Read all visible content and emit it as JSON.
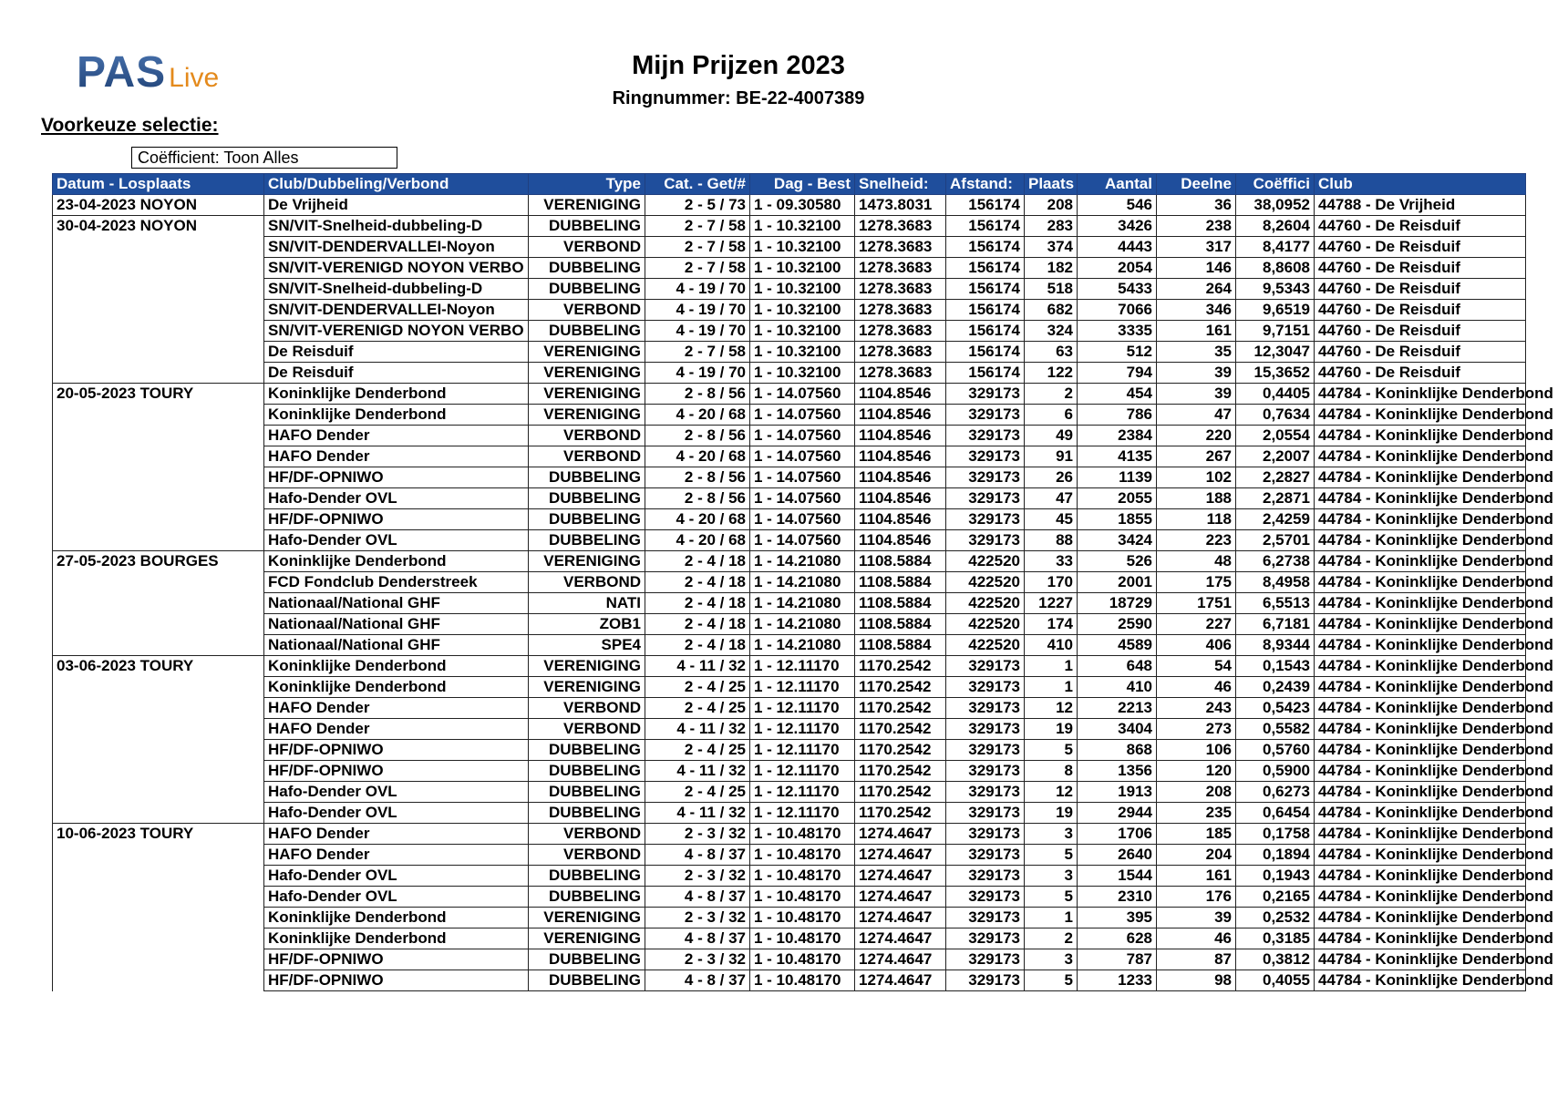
{
  "logo": {
    "text_main": "PAS",
    "text_sub": "Live",
    "colors": {
      "main": "#2a4f86",
      "sub": "#e48a1c"
    }
  },
  "header": {
    "title": "Mijn Prijzen 2023",
    "ringnummer": "Ringnummer: BE-22-4007389"
  },
  "selection": {
    "label": "Voorkeuze selectie:",
    "coefficient": "Coëfficient: Toon Alles"
  },
  "table": {
    "header_color": "#1f4e9c",
    "columns": [
      "Datum - Losplaats",
      "Club/Dubbeling/Verbond",
      "Type",
      "Cat. - Get/#",
      "Dag - Best",
      "Snelheid:",
      "Afstand:",
      "Plaats",
      "Aantal",
      "Deelne",
      "Coëffici",
      "Club"
    ],
    "rows": [
      [
        "23-04-2023 NOYON",
        "De Vrijheid",
        "VERENIGING",
        "2 - 5 / 73",
        "1 - 09.30580",
        "1473.8031",
        "156174",
        "208",
        "546",
        "36",
        "38,0952",
        "44788 - De Vrijheid"
      ],
      [
        "30-04-2023 NOYON",
        "SN/VIT-Snelheid-dubbeling-D",
        "DUBBELING",
        "2 - 7 / 58",
        "1 - 10.32100",
        "1278.3683",
        "156174",
        "283",
        "3426",
        "238",
        "8,2604",
        "44760 - De Reisduif"
      ],
      [
        "",
        "SN/VIT-DENDERVALLEI-Noyon",
        "VERBOND",
        "2 - 7 / 58",
        "1 - 10.32100",
        "1278.3683",
        "156174",
        "374",
        "4443",
        "317",
        "8,4177",
        "44760 - De Reisduif"
      ],
      [
        "",
        "SN/VIT-VERENIGD NOYON VERBO",
        "DUBBELING",
        "2 - 7 / 58",
        "1 - 10.32100",
        "1278.3683",
        "156174",
        "182",
        "2054",
        "146",
        "8,8608",
        "44760 - De Reisduif"
      ],
      [
        "",
        "SN/VIT-Snelheid-dubbeling-D",
        "DUBBELING",
        "4 - 19 / 70",
        "1 - 10.32100",
        "1278.3683",
        "156174",
        "518",
        "5433",
        "264",
        "9,5343",
        "44760 - De Reisduif"
      ],
      [
        "",
        "SN/VIT-DENDERVALLEI-Noyon",
        "VERBOND",
        "4 - 19 / 70",
        "1 - 10.32100",
        "1278.3683",
        "156174",
        "682",
        "7066",
        "346",
        "9,6519",
        "44760 - De Reisduif"
      ],
      [
        "",
        "SN/VIT-VERENIGD NOYON VERBO",
        "DUBBELING",
        "4 - 19 / 70",
        "1 - 10.32100",
        "1278.3683",
        "156174",
        "324",
        "3335",
        "161",
        "9,7151",
        "44760 - De Reisduif"
      ],
      [
        "",
        "De Reisduif",
        "VERENIGING",
        "2 - 7 / 58",
        "1 - 10.32100",
        "1278.3683",
        "156174",
        "63",
        "512",
        "35",
        "12,3047",
        "44760 - De Reisduif"
      ],
      [
        "",
        "De Reisduif",
        "VERENIGING",
        "4 - 19 / 70",
        "1 - 10.32100",
        "1278.3683",
        "156174",
        "122",
        "794",
        "39",
        "15,3652",
        "44760 - De Reisduif"
      ],
      [
        "20-05-2023 TOURY",
        "Koninklijke Denderbond",
        "VERENIGING",
        "2 - 8 / 56",
        "1 - 14.07560",
        "1104.8546",
        "329173",
        "2",
        "454",
        "39",
        "0,4405",
        "44784 - Koninklijke Denderbond"
      ],
      [
        "",
        "Koninklijke Denderbond",
        "VERENIGING",
        "4 - 20 / 68",
        "1 - 14.07560",
        "1104.8546",
        "329173",
        "6",
        "786",
        "47",
        "0,7634",
        "44784 - Koninklijke Denderbond"
      ],
      [
        "",
        "HAFO Dender",
        "VERBOND",
        "2 - 8 / 56",
        "1 - 14.07560",
        "1104.8546",
        "329173",
        "49",
        "2384",
        "220",
        "2,0554",
        "44784 - Koninklijke Denderbond"
      ],
      [
        "",
        "HAFO Dender",
        "VERBOND",
        "4 - 20 / 68",
        "1 - 14.07560",
        "1104.8546",
        "329173",
        "91",
        "4135",
        "267",
        "2,2007",
        "44784 - Koninklijke Denderbond"
      ],
      [
        "",
        "HF/DF-OPNIWO",
        "DUBBELING",
        "2 - 8 / 56",
        "1 - 14.07560",
        "1104.8546",
        "329173",
        "26",
        "1139",
        "102",
        "2,2827",
        "44784 - Koninklijke Denderbond"
      ],
      [
        "",
        "Hafo-Dender OVL",
        "DUBBELING",
        "2 - 8 / 56",
        "1 - 14.07560",
        "1104.8546",
        "329173",
        "47",
        "2055",
        "188",
        "2,2871",
        "44784 - Koninklijke Denderbond"
      ],
      [
        "",
        "HF/DF-OPNIWO",
        "DUBBELING",
        "4 - 20 / 68",
        "1 - 14.07560",
        "1104.8546",
        "329173",
        "45",
        "1855",
        "118",
        "2,4259",
        "44784 - Koninklijke Denderbond"
      ],
      [
        "",
        "Hafo-Dender OVL",
        "DUBBELING",
        "4 - 20 / 68",
        "1 - 14.07560",
        "1104.8546",
        "329173",
        "88",
        "3424",
        "223",
        "2,5701",
        "44784 - Koninklijke Denderbond"
      ],
      [
        "27-05-2023 BOURGES",
        "Koninklijke Denderbond",
        "VERENIGING",
        "2 - 4 / 18",
        "1 - 14.21080",
        "1108.5884",
        "422520",
        "33",
        "526",
        "48",
        "6,2738",
        "44784 - Koninklijke Denderbond"
      ],
      [
        "",
        "FCD Fondclub Denderstreek",
        "VERBOND",
        "2 - 4 / 18",
        "1 - 14.21080",
        "1108.5884",
        "422520",
        "170",
        "2001",
        "175",
        "8,4958",
        "44784 - Koninklijke Denderbond"
      ],
      [
        "",
        "Nationaal/National GHF",
        "NATI",
        "2 - 4 / 18",
        "1 - 14.21080",
        "1108.5884",
        "422520",
        "1227",
        "18729",
        "1751",
        "6,5513",
        "44784 - Koninklijke Denderbond"
      ],
      [
        "",
        "Nationaal/National GHF",
        "ZOB1",
        "2 - 4 / 18",
        "1 - 14.21080",
        "1108.5884",
        "422520",
        "174",
        "2590",
        "227",
        "6,7181",
        "44784 - Koninklijke Denderbond"
      ],
      [
        "",
        "Nationaal/National GHF",
        "SPE4",
        "2 - 4 / 18",
        "1 - 14.21080",
        "1108.5884",
        "422520",
        "410",
        "4589",
        "406",
        "8,9344",
        "44784 - Koninklijke Denderbond"
      ],
      [
        "03-06-2023 TOURY",
        "Koninklijke Denderbond",
        "VERENIGING",
        "4 - 11 / 32",
        "1 - 12.11170",
        "1170.2542",
        "329173",
        "1",
        "648",
        "54",
        "0,1543",
        "44784 - Koninklijke Denderbond"
      ],
      [
        "",
        "Koninklijke Denderbond",
        "VERENIGING",
        "2 - 4 / 25",
        "1 - 12.11170",
        "1170.2542",
        "329173",
        "1",
        "410",
        "46",
        "0,2439",
        "44784 - Koninklijke Denderbond"
      ],
      [
        "",
        "HAFO Dender",
        "VERBOND",
        "2 - 4 / 25",
        "1 - 12.11170",
        "1170.2542",
        "329173",
        "12",
        "2213",
        "243",
        "0,5423",
        "44784 - Koninklijke Denderbond"
      ],
      [
        "",
        "HAFO Dender",
        "VERBOND",
        "4 - 11 / 32",
        "1 - 12.11170",
        "1170.2542",
        "329173",
        "19",
        "3404",
        "273",
        "0,5582",
        "44784 - Koninklijke Denderbond"
      ],
      [
        "",
        "HF/DF-OPNIWO",
        "DUBBELING",
        "2 - 4 / 25",
        "1 - 12.11170",
        "1170.2542",
        "329173",
        "5",
        "868",
        "106",
        "0,5760",
        "44784 - Koninklijke Denderbond"
      ],
      [
        "",
        "HF/DF-OPNIWO",
        "DUBBELING",
        "4 - 11 / 32",
        "1 - 12.11170",
        "1170.2542",
        "329173",
        "8",
        "1356",
        "120",
        "0,5900",
        "44784 - Koninklijke Denderbond"
      ],
      [
        "",
        "Hafo-Dender OVL",
        "DUBBELING",
        "2 - 4 / 25",
        "1 - 12.11170",
        "1170.2542",
        "329173",
        "12",
        "1913",
        "208",
        "0,6273",
        "44784 - Koninklijke Denderbond"
      ],
      [
        "",
        "Hafo-Dender OVL",
        "DUBBELING",
        "4 - 11 / 32",
        "1 - 12.11170",
        "1170.2542",
        "329173",
        "19",
        "2944",
        "235",
        "0,6454",
        "44784 - Koninklijke Denderbond"
      ],
      [
        "10-06-2023 TOURY",
        "HAFO Dender",
        "VERBOND",
        "2 - 3 / 32",
        "1 - 10.48170",
        "1274.4647",
        "329173",
        "3",
        "1706",
        "185",
        "0,1758",
        "44784 - Koninklijke Denderbond"
      ],
      [
        "",
        "HAFO Dender",
        "VERBOND",
        "4 - 8 / 37",
        "1 - 10.48170",
        "1274.4647",
        "329173",
        "5",
        "2640",
        "204",
        "0,1894",
        "44784 - Koninklijke Denderbond"
      ],
      [
        "",
        "Hafo-Dender OVL",
        "DUBBELING",
        "2 - 3 / 32",
        "1 - 10.48170",
        "1274.4647",
        "329173",
        "3",
        "1544",
        "161",
        "0,1943",
        "44784 - Koninklijke Denderbond"
      ],
      [
        "",
        "Hafo-Dender OVL",
        "DUBBELING",
        "4 - 8 / 37",
        "1 - 10.48170",
        "1274.4647",
        "329173",
        "5",
        "2310",
        "176",
        "0,2165",
        "44784 - Koninklijke Denderbond"
      ],
      [
        "",
        "Koninklijke Denderbond",
        "VERENIGING",
        "2 - 3 / 32",
        "1 - 10.48170",
        "1274.4647",
        "329173",
        "1",
        "395",
        "39",
        "0,2532",
        "44784 - Koninklijke Denderbond"
      ],
      [
        "",
        "Koninklijke Denderbond",
        "VERENIGING",
        "4 - 8 / 37",
        "1 - 10.48170",
        "1274.4647",
        "329173",
        "2",
        "628",
        "46",
        "0,3185",
        "44784 - Koninklijke Denderbond"
      ],
      [
        "",
        "HF/DF-OPNIWO",
        "DUBBELING",
        "2 - 3 / 32",
        "1 - 10.48170",
        "1274.4647",
        "329173",
        "3",
        "787",
        "87",
        "0,3812",
        "44784 - Koninklijke Denderbond"
      ],
      [
        "",
        "HF/DF-OPNIWO",
        "DUBBELING",
        "4 - 8 / 37",
        "1 - 10.48170",
        "1274.4647",
        "329173",
        "5",
        "1233",
        "98",
        "0,4055",
        "44784 - Koninklijke Denderbond"
      ]
    ]
  }
}
